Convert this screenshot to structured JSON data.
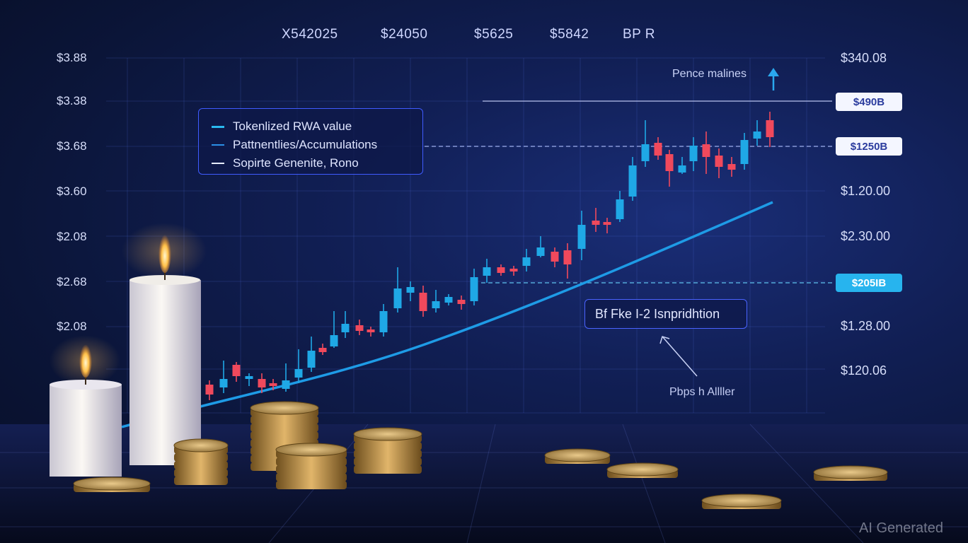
{
  "header_labels": [
    "X542025",
    "$24050",
    "$5625",
    "$5842",
    "BP R"
  ],
  "left_axis_labels": [
    "$3.88",
    "$3.38",
    "$3.68",
    "$3.60",
    "$2.08",
    "$2.68",
    "$2.08"
  ],
  "right_axis_labels": [
    "$340.08",
    "$1.20.00",
    "$2.30.00",
    "$1.28.00",
    "$120.06"
  ],
  "tags": {
    "tag1": "$490B",
    "tag2": "$1250B",
    "tag3": "$205IB"
  },
  "legend": {
    "item1": "Tokenlized RWA value",
    "item2": "Pattnentlies/Accumulations",
    "item3": "Sopirte Genenite, Rono"
  },
  "annotation": "Bf Fke I-2 Isnpridhtion",
  "annotation_note": "Pbps h Allller",
  "peak_note": "Pence malines",
  "watermark": "AI Generated",
  "colors": {
    "up_candle": "#1fa8e6",
    "down_candle": "#f0495c",
    "trend_line": "#1e9be6",
    "legend_border": "#3f5bff"
  }
}
